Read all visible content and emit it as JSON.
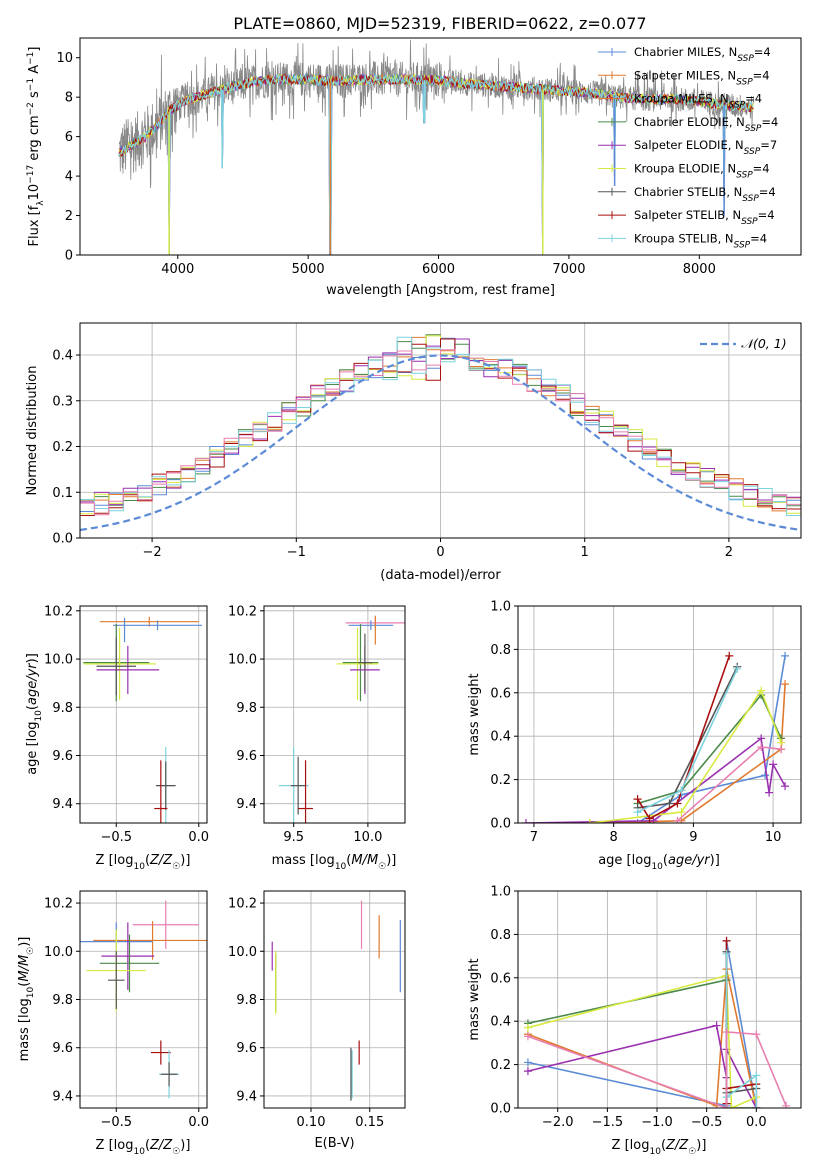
{
  "title": "PLATE=0860, MJD=52319, FIBERID=0622, z=0.077",
  "colors": {
    "chabrier_miles": "#5b8bd6",
    "salpeter_miles": "#e07a2e",
    "kroupa_miles": "#e37a2e",
    "chabrier_elodie": "#4a8a4a",
    "salpeter_elodie": "#9a2fb0",
    "kroupa_elodie": "#d8ea40",
    "chabrier_stelib": "#555555",
    "salpeter_stelib": "#a80f0f",
    "kroupa_stelib": "#7dd3de",
    "normal_curve": "#5b8bd6",
    "pink": "#e87fb0"
  },
  "chart_data": [
    {
      "type": "line",
      "id": "spectrum",
      "xlabel": "wavelength [Angstrom, rest frame]",
      "ylabel": "Flux [f_λ 10^-17 erg cm^-2 s^-1 A^-1]",
      "xlim": [
        3250,
        8780
      ],
      "ylim": [
        0,
        11
      ],
      "xticks": [
        4000,
        5000,
        6000,
        7000,
        8000
      ],
      "yticks": [
        0,
        2,
        4,
        6,
        8,
        10
      ],
      "legend_position": "right",
      "legend": [
        {
          "label": "Chabrier MILES, N",
          "sub": "SSP",
          "tail": "=4",
          "color": "#5b8bd6"
        },
        {
          "label": "Salpeter MILES, N",
          "sub": "SSP",
          "tail": "=4",
          "color": "#e07a2e"
        },
        {
          "label": "Kroupa MILES, N",
          "sub": "SSP",
          "tail": "=4",
          "color": "#e37a2e"
        },
        {
          "label": "Chabrier ELODIE, N",
          "sub": "SSP",
          "tail": "=4",
          "color": "#4a8a4a"
        },
        {
          "label": "Salpeter ELODIE, N",
          "sub": "SSP",
          "tail": "=7",
          "color": "#9a2fb0"
        },
        {
          "label": "Kroupa ELODIE, N",
          "sub": "SSP",
          "tail": "=4",
          "color": "#d8ea40"
        },
        {
          "label": "Chabrier STELIB, N",
          "sub": "SSP",
          "tail": "=4",
          "color": "#555555"
        },
        {
          "label": "Salpeter STELIB, N",
          "sub": "SSP",
          "tail": "=4",
          "color": "#a80f0f"
        },
        {
          "label": "Kroupa STELIB, N",
          "sub": "SSP",
          "tail": "=4",
          "color": "#7dd3de"
        }
      ],
      "continuum": [
        [
          3550,
          5.2
        ],
        [
          3650,
          5.6
        ],
        [
          3750,
          6.0
        ],
        [
          3850,
          6.6
        ],
        [
          3950,
          7.4
        ],
        [
          4050,
          7.8
        ],
        [
          4200,
          8.1
        ],
        [
          4400,
          8.5
        ],
        [
          4600,
          8.8
        ],
        [
          4800,
          8.9
        ],
        [
          5000,
          8.9
        ],
        [
          5200,
          8.8
        ],
        [
          5400,
          8.9
        ],
        [
          5600,
          8.9
        ],
        [
          5800,
          8.9
        ],
        [
          6000,
          8.85
        ],
        [
          6200,
          8.7
        ],
        [
          6400,
          8.6
        ],
        [
          6600,
          8.5
        ],
        [
          6800,
          8.4
        ],
        [
          7000,
          8.3
        ],
        [
          7200,
          8.2
        ],
        [
          7400,
          8.0
        ],
        [
          7600,
          7.9
        ],
        [
          7800,
          7.9
        ],
        [
          8000,
          7.8
        ],
        [
          8200,
          7.6
        ],
        [
          8400,
          7.5
        ]
      ],
      "absorption": [
        [
          3933,
          0
        ],
        [
          4340,
          4.4
        ],
        [
          5170,
          0
        ],
        [
          5890,
          6.7
        ],
        [
          6800,
          0
        ],
        [
          7350,
          3.5
        ],
        [
          8190,
          2.0
        ]
      ]
    },
    {
      "type": "line",
      "id": "residual-distribution",
      "xlabel": "(data-model)/error",
      "ylabel": "Normed distribution",
      "xlim": [
        -2.5,
        2.5
      ],
      "ylim": [
        0,
        0.47
      ],
      "xticks": [
        -2,
        -1,
        0,
        1,
        2
      ],
      "yticks": [
        0.0,
        0.1,
        0.2,
        0.3,
        0.4
      ],
      "legend": "𝒩(0, 1)",
      "legend_position": "top-right"
    },
    {
      "type": "scatter",
      "id": "age-vs-z",
      "xlabel": "Z [log10(Z/Z☉)]",
      "ylabel": "age  [log10(age/yr)]",
      "xlim": [
        -0.72,
        0.05
      ],
      "ylim": [
        9.32,
        10.22
      ],
      "xticks": [
        -0.5,
        0.0
      ],
      "yticks": [
        9.4,
        9.6,
        9.8,
        10.0,
        10.2
      ]
    },
    {
      "type": "scatter",
      "id": "age-vs-mass",
      "xlabel": "mass [log10(M/M☉)]",
      "ylabel": "",
      "xlim": [
        9.3,
        10.25
      ],
      "ylim": [
        9.32,
        10.22
      ],
      "xticks": [
        9.5,
        10.0
      ],
      "yticks": [
        9.4,
        9.6,
        9.8,
        10.0,
        10.2
      ]
    },
    {
      "type": "line",
      "id": "mass-weight-vs-age",
      "xlabel": "age  [log10(age/yr)]",
      "ylabel": "mass weight",
      "xlim": [
        6.8,
        10.35
      ],
      "ylim": [
        0,
        1.0
      ],
      "xticks": [
        7,
        8,
        9,
        10
      ],
      "yticks": [
        0.0,
        0.2,
        0.4,
        0.6,
        0.8,
        1.0
      ]
    },
    {
      "type": "scatter",
      "id": "mass-vs-z",
      "xlabel": "Z [log10(Z/Z☉)]",
      "ylabel": "mass [log10(M/M☉)]",
      "xlim": [
        -0.72,
        0.05
      ],
      "ylim": [
        9.35,
        10.25
      ],
      "xticks": [
        -0.5,
        0.0
      ],
      "yticks": [
        9.4,
        9.6,
        9.8,
        10.0,
        10.2
      ]
    },
    {
      "type": "scatter",
      "id": "mass-vs-ebv",
      "xlabel": "E(B-V)",
      "ylabel": "",
      "xlim": [
        0.06,
        0.18
      ],
      "ylim": [
        9.35,
        10.25
      ],
      "xticks": [
        0.1,
        0.15
      ],
      "yticks": [
        9.4,
        9.6,
        9.8,
        10.0,
        10.2
      ]
    },
    {
      "type": "line",
      "id": "mass-weight-vs-z",
      "xlabel": "Z [log10(Z/Z☉)]",
      "ylabel": "mass weight",
      "xlim": [
        -2.4,
        0.45
      ],
      "ylim": [
        0,
        1.0
      ],
      "xticks": [
        -2.0,
        -1.5,
        -1.0,
        -0.5,
        0.0
      ],
      "yticks": [
        0.0,
        0.2,
        0.4,
        0.6,
        0.8,
        1.0
      ]
    }
  ]
}
